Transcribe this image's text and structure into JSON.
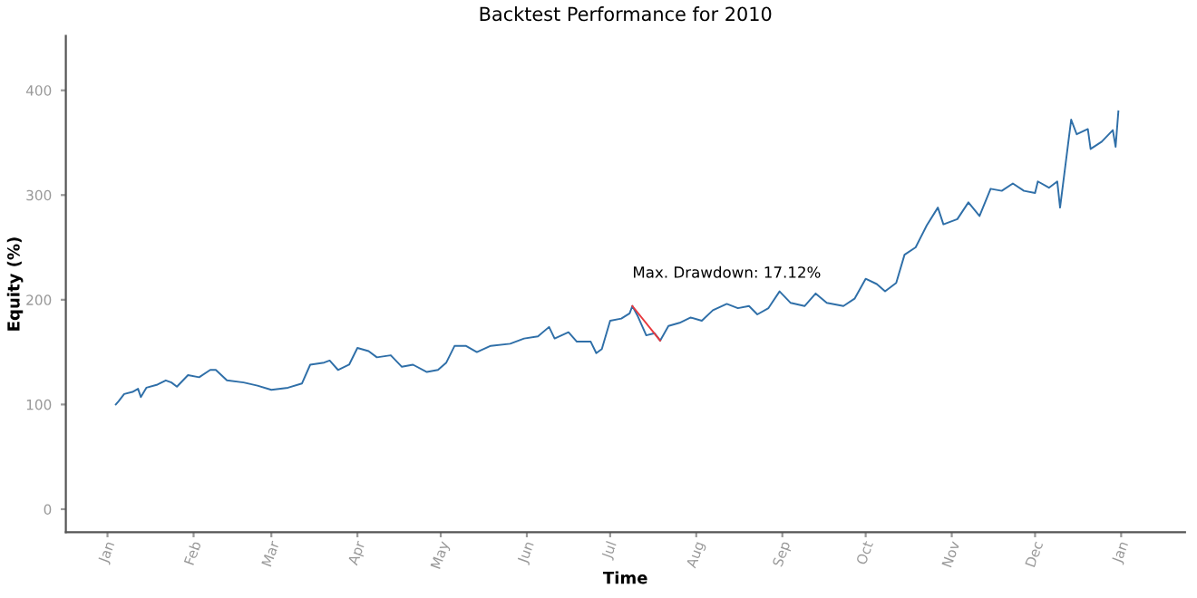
{
  "chart_data": {
    "type": "line",
    "title": "Backtest Performance for 2010",
    "xlabel": "Time",
    "ylabel": "Equity (%)",
    "series": [
      {
        "color": "#2f6fa8",
        "x": [
          "2010-01-04",
          "2010-01-05",
          "2010-01-07",
          "2010-01-10",
          "2010-01-12",
          "2010-01-13",
          "2010-01-15",
          "2010-01-19",
          "2010-01-22",
          "2010-01-24",
          "2010-01-26",
          "2010-01-30",
          "2010-02-03",
          "2010-02-07",
          "2010-02-09",
          "2010-02-13",
          "2010-02-19",
          "2010-02-24",
          "2010-03-01",
          "2010-03-07",
          "2010-03-12",
          "2010-03-15",
          "2010-03-20",
          "2010-03-22",
          "2010-03-25",
          "2010-03-29",
          "2010-04-01",
          "2010-04-05",
          "2010-04-08",
          "2010-04-13",
          "2010-04-17",
          "2010-04-21",
          "2010-04-26",
          "2010-04-30",
          "2010-05-03",
          "2010-05-06",
          "2010-05-10",
          "2010-05-14",
          "2010-05-19",
          "2010-05-26",
          "2010-05-31",
          "2010-06-05",
          "2010-06-09",
          "2010-06-11",
          "2010-06-16",
          "2010-06-19",
          "2010-06-24",
          "2010-06-26",
          "2010-06-28",
          "2010-07-01",
          "2010-07-05",
          "2010-07-08",
          "2010-07-09",
          "2010-07-11",
          "2010-07-14",
          "2010-07-17",
          "2010-07-19",
          "2010-07-22",
          "2010-07-26",
          "2010-07-30",
          "2010-08-03",
          "2010-08-07",
          "2010-08-12",
          "2010-08-16",
          "2010-08-20",
          "2010-08-23",
          "2010-08-27",
          "2010-08-31",
          "2010-09-04",
          "2010-09-09",
          "2010-09-13",
          "2010-09-17",
          "2010-09-23",
          "2010-09-27",
          "2010-10-01",
          "2010-10-05",
          "2010-10-08",
          "2010-10-12",
          "2010-10-15",
          "2010-10-19",
          "2010-10-23",
          "2010-10-27",
          "2010-10-29",
          "2010-11-03",
          "2010-11-07",
          "2010-11-11",
          "2010-11-15",
          "2010-11-19",
          "2010-11-23",
          "2010-11-27",
          "2010-12-01",
          "2010-12-02",
          "2010-12-06",
          "2010-12-09",
          "2010-12-10",
          "2010-12-14",
          "2010-12-16",
          "2010-12-20",
          "2010-12-21",
          "2010-12-25",
          "2010-12-29",
          "2010-12-30",
          "2010-12-31"
        ],
        "values": [
          100,
          103,
          110,
          112,
          115,
          107,
          116,
          119,
          123,
          121,
          117,
          128,
          126,
          133,
          133,
          123,
          121,
          118,
          114,
          116,
          120,
          138,
          140,
          142,
          133,
          138,
          154,
          151,
          145,
          147,
          136,
          138,
          131,
          133,
          140,
          156,
          156,
          150,
          156,
          158,
          163,
          165,
          174,
          163,
          169,
          160,
          160,
          149,
          153,
          180,
          182,
          187,
          194,
          184,
          166,
          168,
          161,
          175,
          178,
          183,
          180,
          190,
          196,
          192,
          194,
          186,
          192,
          208,
          197,
          194,
          206,
          197,
          194,
          201,
          220,
          215,
          208,
          216,
          243,
          250,
          271,
          288,
          272,
          277,
          293,
          280,
          306,
          304,
          311,
          304,
          302,
          313,
          307,
          313,
          288,
          372,
          358,
          363,
          344,
          351,
          362,
          346,
          380
        ]
      },
      {
        "color": "#e8383d",
        "x": [
          "2010-07-09",
          "2010-07-19"
        ],
        "values": [
          194,
          161
        ]
      }
    ],
    "annotations": [
      {
        "text": "Max. Drawdown: 17.12%",
        "x": "2010-07-09",
        "y": 194
      }
    ],
    "xlim": [
      "2009-12-17",
      "2011-01-24"
    ],
    "ylim": [
      -22,
      452
    ],
    "xticks": [
      {
        "value": "2010-01-01",
        "label": "Jan"
      },
      {
        "value": "2010-02-01",
        "label": "Feb"
      },
      {
        "value": "2010-03-01",
        "label": "Mar"
      },
      {
        "value": "2010-04-01",
        "label": "Apr"
      },
      {
        "value": "2010-05-01",
        "label": "May"
      },
      {
        "value": "2010-06-01",
        "label": "Jun"
      },
      {
        "value": "2010-07-01",
        "label": "Jul"
      },
      {
        "value": "2010-08-01",
        "label": "Aug"
      },
      {
        "value": "2010-09-01",
        "label": "Sep"
      },
      {
        "value": "2010-10-01",
        "label": "Oct"
      },
      {
        "value": "2010-11-01",
        "label": "Nov"
      },
      {
        "value": "2010-12-01",
        "label": "Dec"
      },
      {
        "value": "2011-01-01",
        "label": "Jan"
      }
    ],
    "yticks": [
      0,
      100,
      200,
      300,
      400
    ],
    "grid": false
  }
}
